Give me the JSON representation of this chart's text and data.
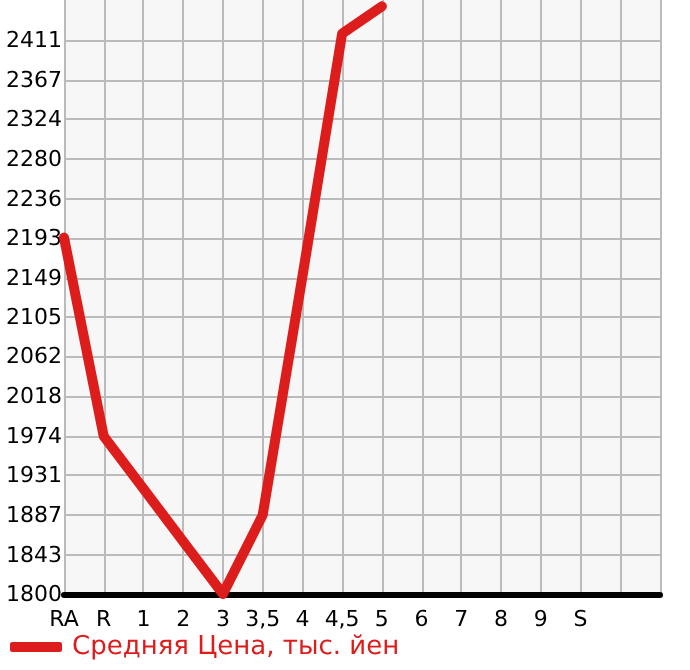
{
  "chart_data": {
    "type": "line",
    "categories": [
      "RA",
      "R",
      "1",
      "2",
      "3",
      "3,5",
      "4",
      "4,5",
      "5",
      "6",
      "7",
      "8",
      "9",
      "S",
      null,
      null
    ],
    "series": [
      {
        "name": "Средняя Цена, тыс. йен",
        "color": "#dd1c1c",
        "values": [
          2193,
          1974,
          1916,
          1858,
          1800,
          1887,
          2150,
          2418,
          2448,
          null,
          null,
          null,
          null,
          null,
          null,
          null
        ]
      }
    ],
    "ylim": [
      1800,
      2455
    ],
    "yticks": [
      1800,
      1843,
      1887,
      1931,
      1974,
      2018,
      2062,
      2105,
      2149,
      2193,
      2236,
      2280,
      2324,
      2367,
      2411
    ],
    "grid": true,
    "legend": "bottom",
    "marker": "none",
    "line_style": "solid"
  }
}
